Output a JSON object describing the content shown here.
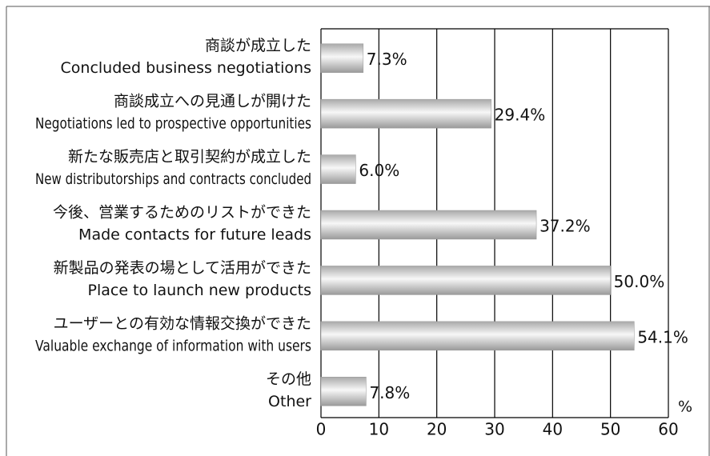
{
  "chart_data": {
    "type": "bar",
    "orientation": "horizontal",
    "categories": [
      [
        "商談が成立した",
        "Concluded business negotiations"
      ],
      [
        "商談成立への見通しが開けた",
        "Negotiations led to prospective opportunities"
      ],
      [
        "新たな販売店と取引契約が成立した",
        "New distributorships and contracts concluded"
      ],
      [
        "今後、営業するためのリストができた",
        "Made contacts for future leads"
      ],
      [
        "新製品の発表の場として活用ができた",
        "Place to launch new products"
      ],
      [
        "ユーザーとの有効な情報交換ができた",
        "Valuable exchange of information with users"
      ],
      [
        "その他",
        "Other"
      ]
    ],
    "values": [
      7.3,
      29.4,
      6.0,
      37.2,
      50.0,
      54.1,
      7.8
    ],
    "value_labels": [
      "7.3%",
      "29.4%",
      "6.0%",
      "37.2%",
      "50.0%",
      "54.1%",
      "7.8%"
    ],
    "color": "#c8c8c8",
    "xlim": [
      0,
      60
    ],
    "xticks": [
      0,
      10,
      20,
      30,
      40,
      50,
      60
    ],
    "xlabel": "%",
    "grid": true
  }
}
